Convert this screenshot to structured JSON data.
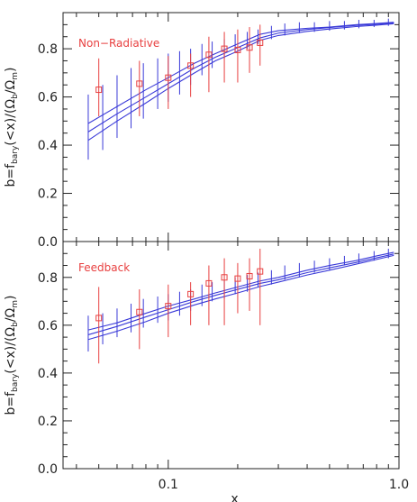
{
  "colors": {
    "model": "#3a3ad8",
    "data": "#e84040",
    "axis": "#222222"
  },
  "chart_data": [
    {
      "type": "line",
      "annotation": "Non−Radiative",
      "ylabel": "b=f_bary(<x)/(Ω_b/Ω_m)",
      "ylim": [
        0.0,
        0.95
      ],
      "yticks": [
        "0.0",
        "0.2",
        "0.4",
        "0.6",
        "0.8"
      ],
      "ytick_values": [
        0.0,
        0.2,
        0.4,
        0.6,
        0.8
      ],
      "xlim": [
        0.035,
        1.0
      ],
      "xscale": "log",
      "xticks": [],
      "xtick_values": [],
      "series": [
        {
          "x": [
            0.045,
            0.06,
            0.08,
            0.1,
            0.13,
            0.16,
            0.2,
            0.25,
            0.3,
            0.4,
            0.5,
            0.65,
            0.8,
            0.95
          ],
          "values": [
            0.49,
            0.56,
            0.63,
            0.68,
            0.74,
            0.78,
            0.82,
            0.86,
            0.875,
            0.885,
            0.89,
            0.9,
            0.905,
            0.91
          ]
        },
        {
          "x": [
            0.045,
            0.06,
            0.08,
            0.1,
            0.13,
            0.16,
            0.2,
            0.25,
            0.3,
            0.4,
            0.5,
            0.65,
            0.8,
            0.95
          ],
          "values": [
            0.455,
            0.53,
            0.6,
            0.655,
            0.72,
            0.765,
            0.805,
            0.845,
            0.865,
            0.88,
            0.888,
            0.897,
            0.902,
            0.907
          ]
        },
        {
          "x": [
            0.045,
            0.06,
            0.08,
            0.1,
            0.13,
            0.16,
            0.2,
            0.25,
            0.3,
            0.4,
            0.5,
            0.65,
            0.8,
            0.95
          ],
          "values": [
            0.42,
            0.5,
            0.575,
            0.635,
            0.7,
            0.75,
            0.79,
            0.835,
            0.855,
            0.872,
            0.882,
            0.892,
            0.898,
            0.904
          ]
        }
      ],
      "model_errorbars": {
        "x": [
          0.045,
          0.052,
          0.06,
          0.069,
          0.078,
          0.09,
          0.1,
          0.112,
          0.125,
          0.14,
          0.155,
          0.175,
          0.195,
          0.22,
          0.245,
          0.28,
          0.32,
          0.37,
          0.43,
          0.5,
          0.58,
          0.67,
          0.78,
          0.9
        ],
        "lo": [
          0.34,
          0.38,
          0.43,
          0.47,
          0.51,
          0.55,
          0.58,
          0.61,
          0.65,
          0.69,
          0.72,
          0.76,
          0.79,
          0.8,
          0.82,
          0.84,
          0.855,
          0.865,
          0.87,
          0.875,
          0.88,
          0.885,
          0.89,
          0.895
        ],
        "hi": [
          0.61,
          0.65,
          0.69,
          0.72,
          0.74,
          0.76,
          0.78,
          0.79,
          0.8,
          0.82,
          0.83,
          0.84,
          0.86,
          0.87,
          0.88,
          0.895,
          0.905,
          0.91,
          0.91,
          0.915,
          0.915,
          0.92,
          0.92,
          0.925
        ]
      },
      "data_points": {
        "x": [
          0.05,
          0.075,
          0.1,
          0.125,
          0.15,
          0.175,
          0.2,
          0.225,
          0.25
        ],
        "y": [
          0.63,
          0.655,
          0.68,
          0.73,
          0.775,
          0.8,
          0.795,
          0.805,
          0.825
        ],
        "lo": [
          0.52,
          0.52,
          0.55,
          0.6,
          0.62,
          0.66,
          0.66,
          0.7,
          0.73
        ],
        "hi": [
          0.76,
          0.75,
          0.77,
          0.78,
          0.85,
          0.87,
          0.88,
          0.89,
          0.9
        ]
      }
    },
    {
      "type": "line",
      "annotation": "Feedback",
      "ylabel": "b=f_bary(<x)/(Ω_b/Ω_m)",
      "ylim": [
        0.0,
        0.95
      ],
      "yticks": [
        "0.0",
        "0.2",
        "0.4",
        "0.6",
        "0.8"
      ],
      "ytick_values": [
        0.0,
        0.2,
        0.4,
        0.6,
        0.8
      ],
      "xlabel": "x",
      "xlim": [
        0.035,
        1.0
      ],
      "xscale": "log",
      "xticks": [
        "0.1",
        "1.0"
      ],
      "xtick_values": [
        0.1,
        1.0
      ],
      "series": [
        {
          "x": [
            0.045,
            0.06,
            0.08,
            0.1,
            0.13,
            0.16,
            0.2,
            0.25,
            0.3,
            0.4,
            0.5,
            0.65,
            0.8,
            0.95
          ],
          "values": [
            0.58,
            0.61,
            0.65,
            0.68,
            0.71,
            0.735,
            0.76,
            0.785,
            0.8,
            0.83,
            0.85,
            0.87,
            0.89,
            0.905
          ]
        },
        {
          "x": [
            0.045,
            0.06,
            0.08,
            0.1,
            0.13,
            0.16,
            0.2,
            0.25,
            0.3,
            0.4,
            0.5,
            0.65,
            0.8,
            0.95
          ],
          "values": [
            0.56,
            0.595,
            0.635,
            0.665,
            0.7,
            0.725,
            0.75,
            0.775,
            0.79,
            0.82,
            0.84,
            0.862,
            0.882,
            0.898
          ]
        },
        {
          "x": [
            0.045,
            0.06,
            0.08,
            0.1,
            0.13,
            0.16,
            0.2,
            0.25,
            0.3,
            0.4,
            0.5,
            0.65,
            0.8,
            0.95
          ],
          "values": [
            0.54,
            0.575,
            0.615,
            0.65,
            0.685,
            0.71,
            0.735,
            0.762,
            0.78,
            0.81,
            0.83,
            0.855,
            0.875,
            0.892
          ]
        }
      ],
      "model_errorbars": {
        "x": [
          0.045,
          0.052,
          0.06,
          0.069,
          0.078,
          0.09,
          0.1,
          0.112,
          0.125,
          0.14,
          0.155,
          0.175,
          0.195,
          0.22,
          0.245,
          0.28,
          0.32,
          0.37,
          0.43,
          0.5,
          0.58,
          0.67,
          0.78,
          0.9
        ],
        "lo": [
          0.49,
          0.52,
          0.55,
          0.57,
          0.59,
          0.61,
          0.62,
          0.64,
          0.66,
          0.68,
          0.7,
          0.71,
          0.73,
          0.74,
          0.76,
          0.77,
          0.79,
          0.8,
          0.82,
          0.83,
          0.85,
          0.86,
          0.87,
          0.88
        ],
        "hi": [
          0.64,
          0.65,
          0.67,
          0.69,
          0.71,
          0.72,
          0.73,
          0.74,
          0.75,
          0.77,
          0.78,
          0.79,
          0.8,
          0.81,
          0.82,
          0.83,
          0.85,
          0.86,
          0.87,
          0.88,
          0.89,
          0.9,
          0.91,
          0.92
        ]
      },
      "data_points": {
        "x": [
          0.05,
          0.075,
          0.1,
          0.125,
          0.15,
          0.175,
          0.2,
          0.225,
          0.25
        ],
        "y": [
          0.63,
          0.655,
          0.68,
          0.73,
          0.775,
          0.8,
          0.795,
          0.805,
          0.825
        ],
        "lo": [
          0.44,
          0.5,
          0.55,
          0.6,
          0.6,
          0.6,
          0.65,
          0.66,
          0.6
        ],
        "hi": [
          0.76,
          0.75,
          0.77,
          0.78,
          0.85,
          0.88,
          0.86,
          0.88,
          0.92
        ]
      }
    }
  ]
}
